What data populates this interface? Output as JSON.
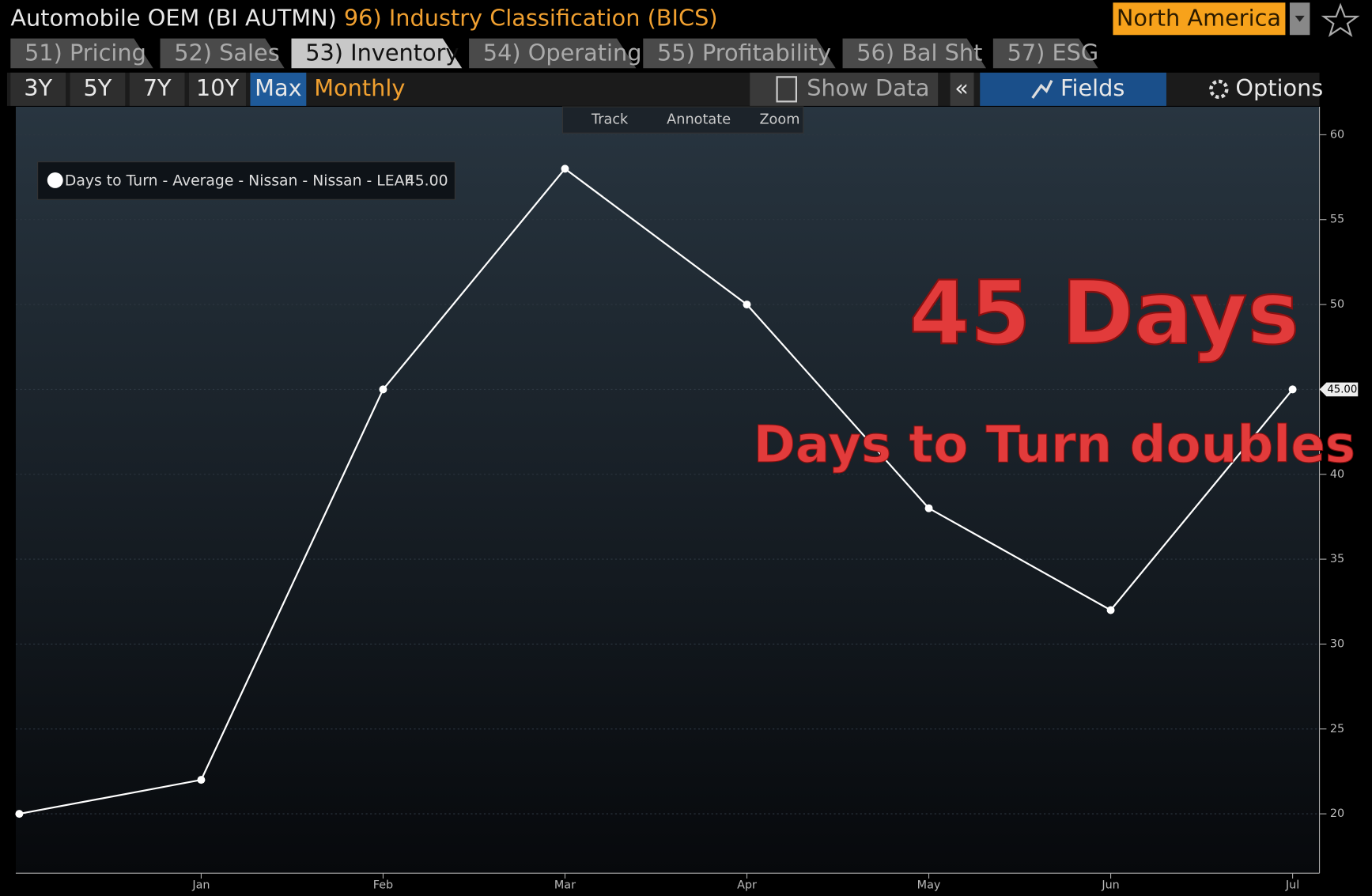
{
  "header": {
    "title": "Automobile OEM (BI AUTMN)",
    "classification": "96) Industry Classification (BICS)",
    "region": "North America"
  },
  "tabs": [
    "51) Pricing",
    "52) Sales",
    "53) Inventory",
    "54) Operating",
    "55) Profitability",
    "56) Bal Sht",
    "57) ESG"
  ],
  "ranges": [
    "3Y",
    "5Y",
    "7Y",
    "10Y",
    "Max"
  ],
  "frequency": "Monthly",
  "toolbar": {
    "show_data": "Show Data",
    "collapse": "«",
    "fields": "Fields",
    "options": "Options"
  },
  "chart_tools": [
    "Track",
    "Annotate",
    "Zoom"
  ],
  "chart_data": {
    "type": "line",
    "categories": [
      null,
      "Jan",
      "Feb",
      "Mar",
      "Apr",
      "May",
      "Jun",
      "Jul"
    ],
    "series": [
      {
        "name": "Days to Turn - Average - Nissan - Nissan - LEAF",
        "color": "#ffffff",
        "values": [
          20,
          22,
          45,
          58,
          50,
          38,
          32,
          45
        ],
        "value_labels": [
          null,
          null,
          null,
          null,
          null,
          null,
          null,
          "45.00"
        ]
      }
    ],
    "ylim": [
      16.5,
      61.65
    ],
    "yticks": [
      20,
      25,
      30,
      35,
      40,
      45,
      50,
      55,
      60
    ],
    "grid": true,
    "annotations": [
      "45 Days",
      "Days to Turn doubles"
    ]
  }
}
